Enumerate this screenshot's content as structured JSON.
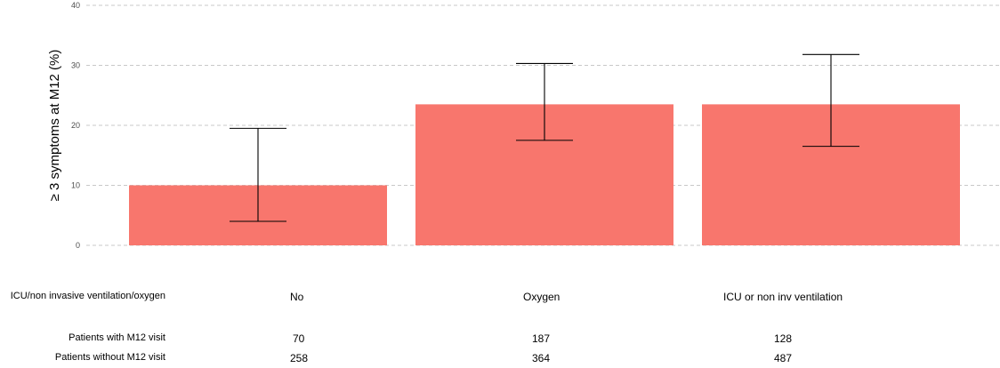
{
  "chart_data": {
    "type": "bar",
    "title": "",
    "xlabel": "",
    "ylabel": "≥ 3 symptoms at M12 (%)",
    "ylim": [
      0,
      40
    ],
    "yticks": [
      0,
      10,
      20,
      30,
      40
    ],
    "grid": true,
    "bar_color": "#F8766D",
    "categories": [
      "No",
      "Oxygen",
      "ICU or non inv ventilation"
    ],
    "values": [
      10,
      23.5,
      23.5
    ],
    "error_low": [
      4,
      17.5,
      16.5
    ],
    "error_high": [
      19.5,
      30.3,
      31.8
    ]
  },
  "table": {
    "group_label": "ICU/non invasive ventilation/oxygen",
    "group_values": [
      "No",
      "Oxygen",
      "ICU or non inv ventilation"
    ],
    "rows": [
      {
        "label": "Patients with M12 visit",
        "values": [
          "70",
          "187",
          "128"
        ]
      },
      {
        "label": "Patients without M12 visit",
        "values": [
          "258",
          "364",
          "487"
        ]
      }
    ]
  }
}
